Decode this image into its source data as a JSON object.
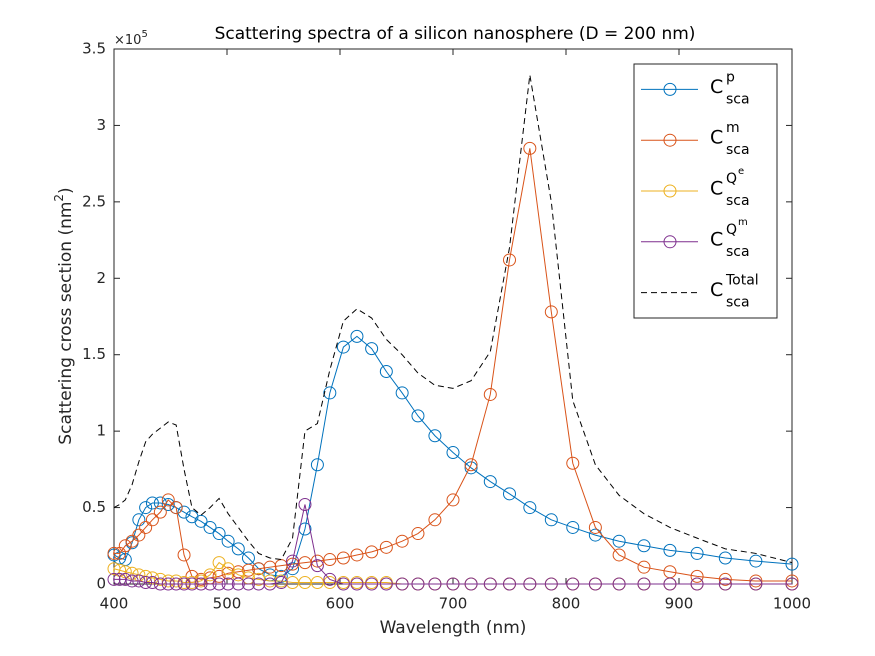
{
  "chart_data": {
    "type": "line",
    "title": "Scattering spectra of a silicon nanosphere (D = 200 nm)",
    "x_label": "Wavelength (nm)",
    "y_label": {
      "text": "Scattering cross section (nm",
      "superscript": "2",
      "suffix": ")"
    },
    "y_multiplier": {
      "base": "×10",
      "exponent": "5"
    },
    "x": [
      400,
      405,
      410,
      416,
      422,
      428,
      434,
      441,
      448,
      455,
      462,
      469,
      477,
      485,
      493,
      501,
      510,
      519,
      528,
      538,
      548,
      558,
      569,
      580,
      591,
      603,
      615,
      628,
      641,
      655,
      669,
      684,
      700,
      716,
      733,
      750,
      768,
      787,
      806,
      826,
      847,
      869,
      892,
      916,
      941,
      968,
      1000
    ],
    "xlim": [
      400,
      1000
    ],
    "ylim": [
      0,
      3.5
    ],
    "xticks": [
      400,
      500,
      600,
      700,
      800,
      900,
      1000
    ],
    "yticks": [
      0,
      0.5,
      1,
      1.5,
      2,
      2.5,
      3,
      3.5
    ],
    "legend_position": "upper right",
    "series": [
      {
        "name": "C",
        "sup": "p",
        "sub": "sca",
        "color": "#0072BD",
        "line_style": "solid",
        "marker": "o",
        "values": [
          0.19,
          0.17,
          0.16,
          0.27,
          0.42,
          0.5,
          0.53,
          0.53,
          0.52,
          0.5,
          0.47,
          0.44,
          0.41,
          0.37,
          0.33,
          0.28,
          0.23,
          0.17,
          0.1,
          0.06,
          0.05,
          0.1,
          0.36,
          0.78,
          1.25,
          1.55,
          1.62,
          1.54,
          1.39,
          1.25,
          1.1,
          0.97,
          0.86,
          0.76,
          0.67,
          0.59,
          0.5,
          0.42,
          0.37,
          0.32,
          0.28,
          0.25,
          0.22,
          0.2,
          0.17,
          0.15,
          0.13
        ]
      },
      {
        "name": "C",
        "sup": "m",
        "sub": "sca",
        "color": "#D95319",
        "line_style": "solid",
        "marker": "o",
        "values": [
          0.2,
          0.2,
          0.25,
          0.28,
          0.32,
          0.37,
          0.42,
          0.47,
          0.55,
          0.5,
          0.19,
          0.05,
          0.03,
          0.04,
          0.05,
          0.07,
          0.08,
          0.09,
          0.1,
          0.11,
          0.12,
          0.13,
          0.14,
          0.15,
          0.16,
          0.17,
          0.19,
          0.21,
          0.24,
          0.28,
          0.33,
          0.42,
          0.55,
          0.78,
          1.24,
          2.12,
          2.85,
          1.78,
          0.79,
          0.37,
          0.19,
          0.11,
          0.08,
          0.05,
          0.03,
          0.02,
          0.02
        ]
      },
      {
        "name": "C",
        "sup": "Q",
        "sup2": "e",
        "sub": "sca",
        "color": "#EDB120",
        "line_style": "solid",
        "marker": "o",
        "values": [
          0.1,
          0.09,
          0.08,
          0.07,
          0.06,
          0.05,
          0.04,
          0.03,
          0.02,
          0.02,
          0.01,
          0.01,
          0.02,
          0.06,
          0.14,
          0.1,
          0.06,
          0.04,
          0.03,
          0.02,
          0.02,
          0.01,
          0.01,
          0.01,
          0.01,
          0.01,
          0.01,
          0.01,
          0.01,
          0,
          0,
          0,
          0,
          0,
          0,
          0,
          0,
          0,
          0,
          0,
          0,
          0,
          0,
          0,
          0,
          0,
          0
        ]
      },
      {
        "name": "C",
        "sup": "Q",
        "sup2": "m",
        "sub": "sca",
        "color": "#7E2F8E",
        "line_style": "solid",
        "marker": "o",
        "values": [
          0.03,
          0.03,
          0.03,
          0.02,
          0.02,
          0.01,
          0.01,
          0,
          0,
          0,
          0,
          0,
          0,
          0,
          0,
          0,
          0,
          0,
          0,
          0,
          0.01,
          0.15,
          0.52,
          0.12,
          0.03,
          0,
          0,
          0,
          0,
          0,
          0,
          0,
          0,
          0,
          0,
          0,
          0,
          0,
          0,
          0,
          0,
          0,
          0,
          0,
          0,
          0,
          0
        ]
      },
      {
        "name": "C",
        "sup": "Total",
        "sub": "sca",
        "color": "#000000",
        "line_style": "dashed",
        "marker": "none",
        "values": [
          0.5,
          0.52,
          0.55,
          0.65,
          0.8,
          0.93,
          0.98,
          1.02,
          1.06,
          1.04,
          0.75,
          0.5,
          0.45,
          0.5,
          0.56,
          0.46,
          0.37,
          0.28,
          0.2,
          0.17,
          0.16,
          0.3,
          1.0,
          1.05,
          1.4,
          1.72,
          1.8,
          1.74,
          1.6,
          1.5,
          1.38,
          1.3,
          1.28,
          1.33,
          1.52,
          2.2,
          3.33,
          2.5,
          1.2,
          0.78,
          0.58,
          0.46,
          0.37,
          0.3,
          0.23,
          0.2,
          0.14
        ]
      }
    ]
  }
}
